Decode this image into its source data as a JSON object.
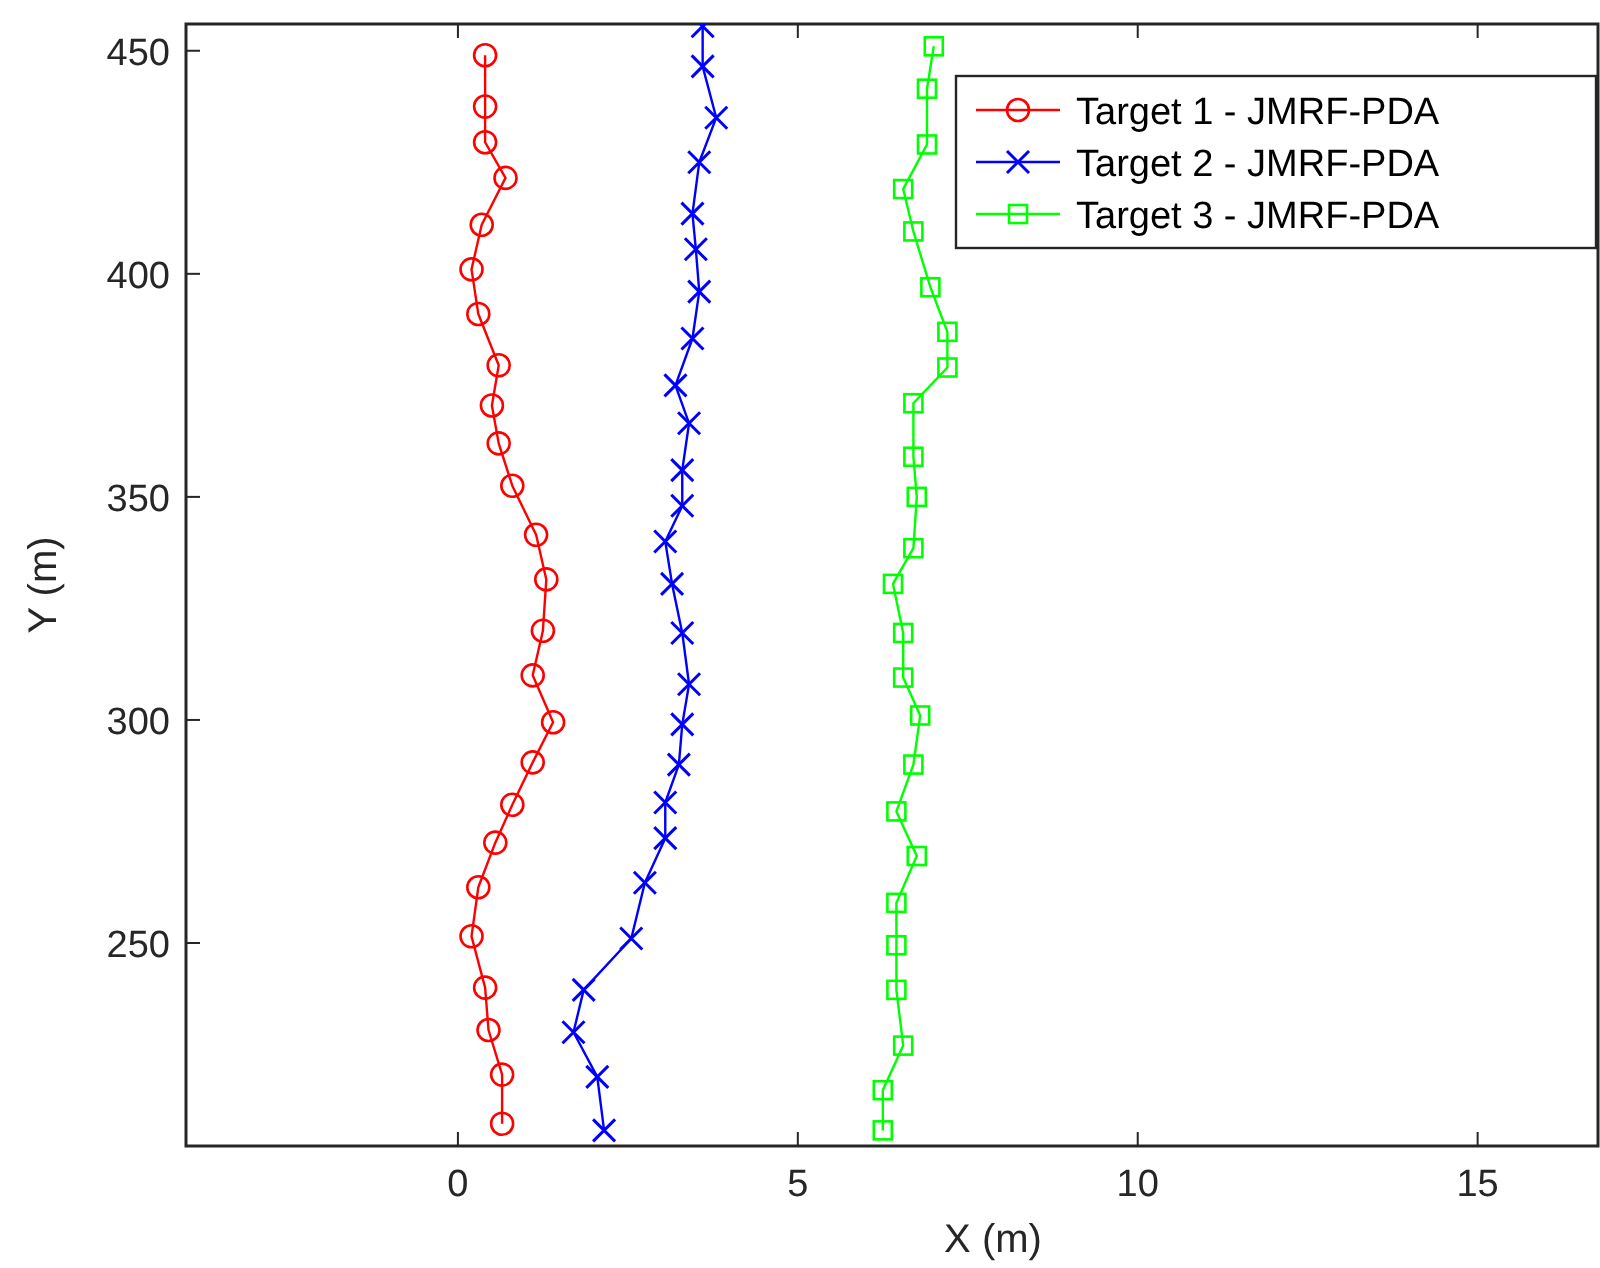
{
  "chart_data": {
    "type": "line",
    "xlabel": "X (m)",
    "ylabel": "Y (m)",
    "xlim": [
      -4,
      16.8
    ],
    "ylim": [
      204.5,
      456
    ],
    "xticks": [
      0,
      5,
      10,
      15
    ],
    "yticks": [
      250,
      300,
      350,
      400,
      450
    ],
    "grid": false,
    "legend": "top right",
    "series": [
      {
        "name": "Target 1 - JMRF-PDA",
        "color": "#ff0000",
        "marker": "circle",
        "x": [
          0.4,
          0.4,
          0.4,
          0.7,
          0.35,
          0.2,
          0.3,
          0.6,
          0.5,
          0.6,
          0.8,
          1.15,
          1.3,
          1.25,
          1.1,
          1.4,
          1.1,
          0.8,
          0.55,
          0.3,
          0.2,
          0.4,
          0.45,
          0.65,
          0.65
        ],
        "values": [
          449,
          437.5,
          429.5,
          421.5,
          411,
          401,
          391,
          379.5,
          370.5,
          362,
          352.5,
          341.5,
          331.5,
          320,
          310,
          299.5,
          290.5,
          281,
          272.5,
          262.5,
          251.5,
          240,
          230.5,
          220.5,
          209.5
        ]
      },
      {
        "name": "Target 2 - JMRF-PDA",
        "color": "#0000ff",
        "marker": "cross",
        "x": [
          3.6,
          3.6,
          3.8,
          3.55,
          3.45,
          3.5,
          3.55,
          3.45,
          3.2,
          3.4,
          3.3,
          3.3,
          3.05,
          3.15,
          3.3,
          3.4,
          3.3,
          3.25,
          3.05,
          3.05,
          2.75,
          2.55,
          1.85,
          1.7,
          2.05,
          2.15
        ],
        "values": [
          455.5,
          446.5,
          435,
          425,
          413.5,
          405.5,
          396,
          385.5,
          375,
          366.5,
          356,
          348,
          340,
          330.5,
          319.5,
          308,
          299,
          290,
          281.5,
          273.5,
          263.5,
          251,
          239.5,
          230,
          220,
          208
        ]
      },
      {
        "name": "Target 3 - JMRF-PDA",
        "color": "#00ff00",
        "marker": "square",
        "x": [
          7,
          6.9,
          6.9,
          6.55,
          6.7,
          6.95,
          7.2,
          7.2,
          6.7,
          6.7,
          6.75,
          6.7,
          6.4,
          6.55,
          6.55,
          6.8,
          6.7,
          6.45,
          6.75,
          6.45,
          6.45,
          6.45,
          6.55,
          6.25,
          6.25
        ],
        "values": [
          451,
          441.5,
          429,
          419,
          409.5,
          397,
          387,
          379,
          371,
          359,
          350,
          338.5,
          330.5,
          319.5,
          309.5,
          301,
          290,
          279.5,
          269.5,
          259,
          249.5,
          239.5,
          227,
          217,
          208
        ]
      }
    ]
  }
}
